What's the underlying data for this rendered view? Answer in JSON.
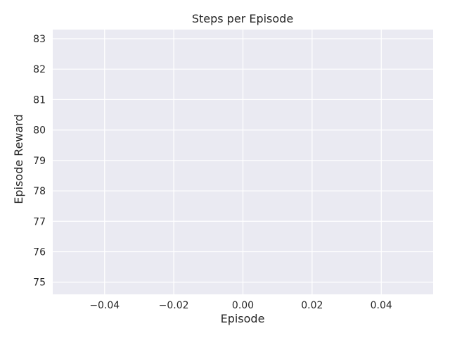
{
  "chart_data": {
    "type": "line",
    "title": "Steps per Episode",
    "xlabel": "Episode",
    "ylabel": "Episode Reward",
    "xlim": [
      -0.055,
      0.055
    ],
    "ylim": [
      74.6,
      83.3
    ],
    "xticks": [
      -0.04,
      -0.02,
      0.0,
      0.02,
      0.04
    ],
    "xtick_labels": [
      "−0.04",
      "−0.02",
      "0.00",
      "0.02",
      "0.04"
    ],
    "yticks": [
      75,
      76,
      77,
      78,
      79,
      80,
      81,
      82,
      83
    ],
    "ytick_labels": [
      "75",
      "76",
      "77",
      "78",
      "79",
      "80",
      "81",
      "82",
      "83"
    ],
    "series": [],
    "grid": true,
    "background": "#eaeaf2",
    "grid_color": "#ffffff"
  }
}
